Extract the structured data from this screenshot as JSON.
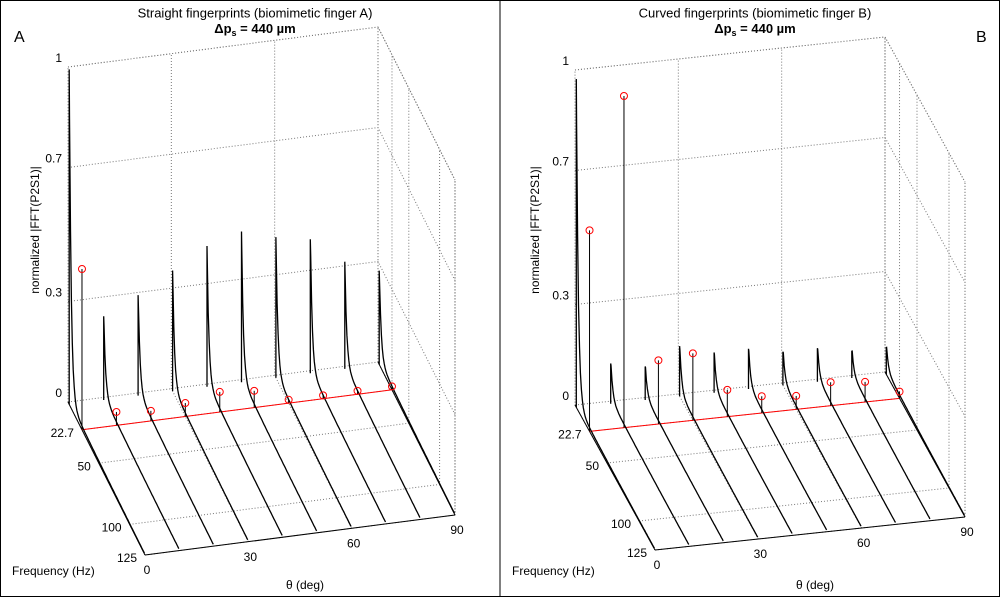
{
  "chart_data": [
    {
      "type": "waterfall",
      "panel": "A",
      "title": "Straight fingerprints (biomimetic finger A)",
      "subtitle": {
        "main": "Δp",
        "sub": "s",
        "rest": " = 440 µm"
      },
      "zlabel": "normalized |FFT(P2S1)|",
      "xlabel": "θ (deg)",
      "ylabel": "Frequency (Hz)",
      "x": [
        0,
        10,
        20,
        30,
        40,
        50,
        60,
        70,
        80,
        90
      ],
      "xlim": [
        0,
        90
      ],
      "xticks": [
        0,
        30,
        60,
        90
      ],
      "ylim": [
        0,
        125
      ],
      "yticks": [
        22.7,
        50,
        100,
        125
      ],
      "zlim": [
        0,
        1
      ],
      "zticks": [
        0,
        0.3,
        0.7,
        1
      ],
      "grid": true,
      "series": [
        {
          "color": "#000000",
          "values": [
            1.0,
            0.25,
            0.3,
            0.36,
            0.42,
            0.45,
            0.42,
            0.4,
            0.32,
            0.28
          ]
        },
        {
          "color": "#ff0000",
          "values": [
            0.48,
            0.04,
            0.03,
            0.04,
            0.06,
            0.05,
            0.01,
            0.01,
            0.01,
            0.01
          ]
        }
      ]
    },
    {
      "type": "waterfall",
      "panel": "B",
      "title": "Curved fingerprints (biomimetic finger B)",
      "subtitle": {
        "main": "Δp",
        "sub": "s",
        "rest": " = 440 µm"
      },
      "zlabel": "normalized |FFT(P2S1)|",
      "xlabel": "θ (deg)",
      "ylabel": "Frequency (Hz)",
      "x": [
        0,
        10,
        20,
        30,
        40,
        50,
        60,
        70,
        80,
        90
      ],
      "xlim": [
        0,
        90
      ],
      "xticks": [
        0,
        30,
        60,
        90
      ],
      "ylim": [
        0,
        125
      ],
      "yticks": [
        22.7,
        50,
        100,
        125
      ],
      "zlim": [
        0,
        1
      ],
      "zticks": [
        0,
        0.3,
        0.7,
        1
      ],
      "grid": true,
      "series": [
        {
          "color": "#000000",
          "values": [
            0.98,
            0.12,
            0.1,
            0.15,
            0.12,
            0.12,
            0.1,
            0.1,
            0.08,
            0.08
          ]
        },
        {
          "color": "#ff0000",
          "values": [
            0.6,
            0.99,
            0.19,
            0.2,
            0.08,
            0.05,
            0.04,
            0.07,
            0.06,
            0.02
          ]
        }
      ]
    }
  ]
}
